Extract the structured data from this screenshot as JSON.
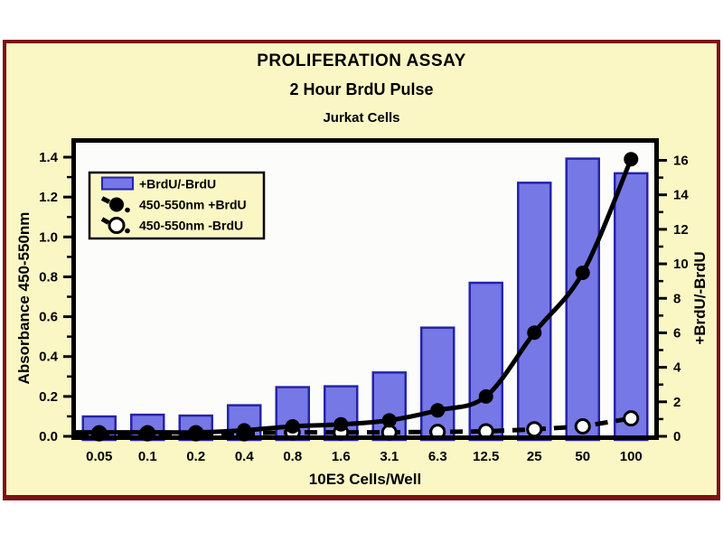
{
  "panel": {
    "titles": {
      "line1": "PROLIFERATION ASSAY",
      "line2": "2 Hour BrdU Pulse",
      "line3": "Jurkat Cells"
    }
  },
  "colors": {
    "page_bg": "#ffffff",
    "panel_bg": "#faf7c5",
    "panel_border": "#7b1213",
    "plot_bg": "#fcfcfa",
    "bar_fill": "#7678e6",
    "bar_border": "#2424a8",
    "line_color": "#000000",
    "open_marker_fill": "#ffffff"
  },
  "chart_data": {
    "type": "bar",
    "subtype": "bar-line-combo",
    "title": "PROLIFERATION ASSAY",
    "subtitle": "2 Hour BrdU Pulse",
    "annotation": "Jurkat Cells",
    "xlabel": "10E3 Cells/Well",
    "categories": [
      "0.05",
      "0.1",
      "0.2",
      "0.4",
      "0.8",
      "1.6",
      "3.1",
      "6.3",
      "12.5",
      "25",
      "50",
      "100"
    ],
    "left_axis": {
      "label": "Absorbance 450-550nm",
      "range": [
        0,
        1.4
      ],
      "major_step": 0.2,
      "minor_step": 0.1,
      "ticks": [
        "0.0",
        "0.2",
        "0.4",
        "0.6",
        "0.8",
        "1.0",
        "1.2",
        "1.4"
      ]
    },
    "right_axis": {
      "label": "+BrdU/-BrdU",
      "range": [
        0,
        16
      ],
      "major_step": 2,
      "minor_step": 1,
      "ticks": [
        "0",
        "2",
        "4",
        "6",
        "8",
        "10",
        "12",
        "14",
        "16"
      ]
    },
    "grid": false,
    "legend_position": "top-left-inside",
    "series": [
      {
        "name": "+BrdU/-BrdU",
        "type": "bar",
        "axis": "right",
        "marker": "bar-swatch",
        "values": [
          1.15,
          1.25,
          1.2,
          1.8,
          2.85,
          2.9,
          3.7,
          6.3,
          8.9,
          14.7,
          16.1,
          15.25
        ]
      },
      {
        "name": "450-550nm +BrdU",
        "type": "line",
        "axis": "left",
        "line_style": "solid",
        "marker": "filled-circle",
        "values": [
          0.02,
          0.02,
          0.02,
          0.03,
          0.05,
          0.06,
          0.08,
          0.13,
          0.2,
          0.52,
          0.82,
          1.39
        ]
      },
      {
        "name": "450-550nm -BrdU",
        "type": "line",
        "axis": "left",
        "line_style": "dashed",
        "marker": "open-circle",
        "values": [
          0.015,
          0.015,
          0.015,
          0.015,
          0.02,
          0.02,
          0.02,
          0.022,
          0.025,
          0.035,
          0.05,
          0.09
        ]
      }
    ]
  }
}
